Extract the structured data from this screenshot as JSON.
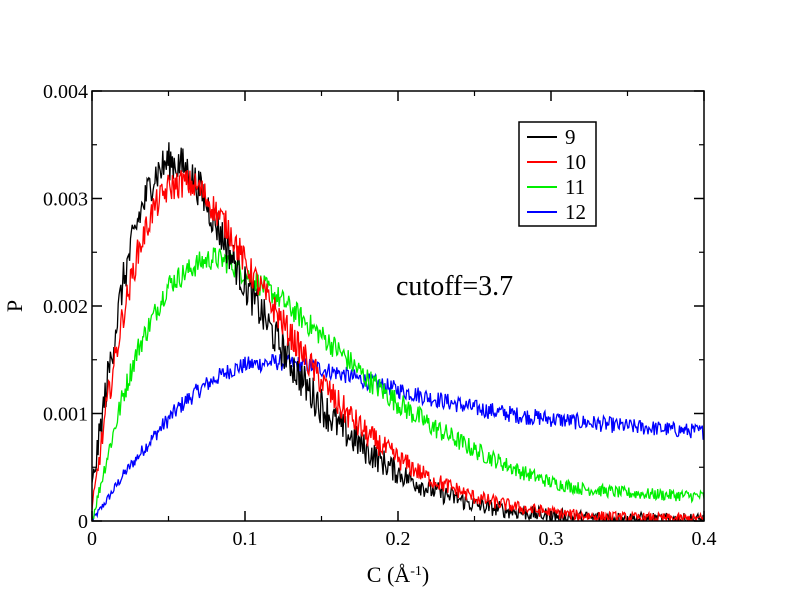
{
  "chart_data": {
    "type": "line",
    "title": "",
    "xlabel": "C (Å",
    "xlabel_sup": "-1",
    "xlabel_close": ")",
    "ylabel": "P",
    "xlim": [
      0,
      0.4
    ],
    "ylim": [
      0,
      0.004
    ],
    "x_ticks": [
      {
        "value": 0,
        "label": "0"
      },
      {
        "value": 0.1,
        "label": "0.1"
      },
      {
        "value": 0.2,
        "label": "0.2"
      },
      {
        "value": 0.3,
        "label": "0.3"
      },
      {
        "value": 0.4,
        "label": "0.4"
      }
    ],
    "y_ticks": [
      {
        "value": 0,
        "label": "0"
      },
      {
        "value": 0.001,
        "label": "0.001"
      },
      {
        "value": 0.002,
        "label": "0.002"
      },
      {
        "value": 0.003,
        "label": "0.003"
      },
      {
        "value": 0.004,
        "label": "0.004"
      }
    ],
    "grid": false,
    "legend_position": "top-right",
    "annotation": "cutoff=3.7",
    "x": [
      0.0,
      0.01,
      0.02,
      0.03,
      0.04,
      0.05,
      0.06,
      0.07,
      0.08,
      0.09,
      0.1,
      0.12,
      0.14,
      0.16,
      0.18,
      0.2,
      0.22,
      0.25,
      0.28,
      0.3,
      0.32,
      0.35,
      0.38,
      0.4
    ],
    "series": [
      {
        "name": "9",
        "color": "#000000",
        "noise": 0.00018,
        "values": [
          0.0003,
          0.0013,
          0.0022,
          0.0028,
          0.0032,
          0.00335,
          0.0033,
          0.0031,
          0.0028,
          0.0025,
          0.0022,
          0.0017,
          0.00125,
          0.0009,
          0.00065,
          0.00045,
          0.0003,
          0.00015,
          8e-05,
          5e-05,
          3e-05,
          2e-05,
          1e-05,
          1e-05
        ]
      },
      {
        "name": "10",
        "color": "#ff0000",
        "noise": 0.00014,
        "values": [
          0.0001,
          0.0011,
          0.0019,
          0.0025,
          0.0029,
          0.0031,
          0.00315,
          0.0031,
          0.0029,
          0.0027,
          0.0024,
          0.00195,
          0.0015,
          0.0011,
          0.0008,
          0.00058,
          0.0004,
          0.00022,
          0.00012,
          8e-05,
          5e-05,
          3e-05,
          2e-05,
          2e-05
        ]
      },
      {
        "name": "11",
        "color": "#00ee00",
        "noise": 0.00011,
        "values": [
          0.0,
          0.0006,
          0.00115,
          0.0016,
          0.0019,
          0.0022,
          0.0023,
          0.0024,
          0.00245,
          0.0024,
          0.0023,
          0.0021,
          0.00185,
          0.0016,
          0.00132,
          0.0011,
          0.0009,
          0.00066,
          0.00046,
          0.00036,
          0.0003,
          0.00026,
          0.00024,
          0.00023
        ]
      },
      {
        "name": "12",
        "color": "#0000ff",
        "noise": 8e-05,
        "values": [
          0.0,
          0.0002,
          0.00042,
          0.0006,
          0.00078,
          0.00095,
          0.0011,
          0.00122,
          0.00132,
          0.0014,
          0.00145,
          0.00148,
          0.00145,
          0.00138,
          0.0013,
          0.00122,
          0.00115,
          0.00105,
          0.00098,
          0.00095,
          0.00092,
          0.00088,
          0.00085,
          0.00083
        ]
      }
    ]
  }
}
